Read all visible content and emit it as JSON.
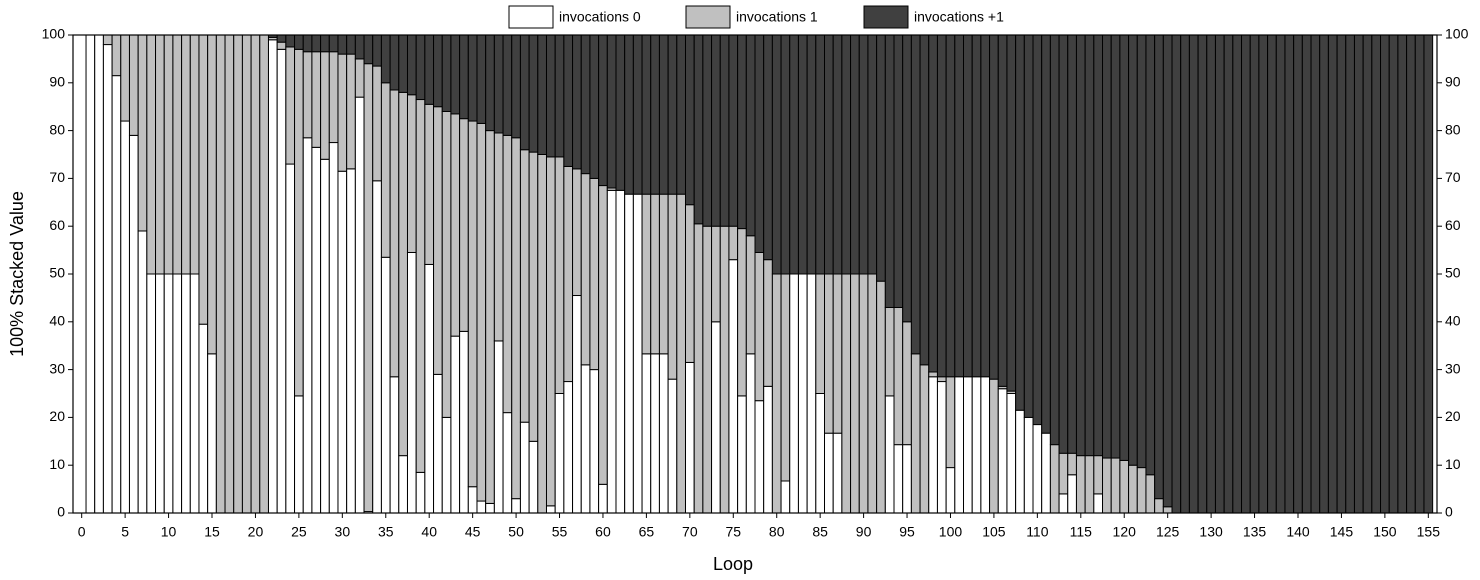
{
  "chart_data": {
    "type": "stacked_bar_100",
    "xlabel": "Loop",
    "ylabel": "100% Stacked Value",
    "x": [
      1,
      2,
      3,
      4,
      5,
      6,
      7,
      8,
      9,
      10,
      11,
      12,
      13,
      14,
      15,
      16,
      17,
      18,
      19,
      20,
      21,
      22,
      23,
      24,
      25,
      26,
      27,
      28,
      29,
      30,
      31,
      32,
      33,
      34,
      35,
      36,
      37,
      38,
      39,
      40,
      41,
      42,
      43,
      44,
      45,
      46,
      47,
      48,
      49,
      50,
      51,
      52,
      53,
      54,
      55,
      56,
      57,
      58,
      59,
      60,
      61,
      62,
      63,
      64,
      65,
      66,
      67,
      68,
      69,
      70,
      71,
      72,
      73,
      74,
      75,
      76,
      77,
      78,
      79,
      80,
      81,
      82,
      83,
      84,
      85,
      86,
      87,
      88,
      89,
      90,
      91,
      92,
      93,
      94,
      95,
      96,
      97,
      98,
      99,
      100,
      101,
      102,
      103,
      104,
      105,
      106,
      107,
      108,
      109,
      110,
      111,
      112,
      113,
      114,
      115,
      116,
      117,
      118,
      119,
      120,
      121,
      122,
      123,
      124,
      125,
      126,
      127,
      128,
      129,
      130,
      131,
      132,
      133,
      134,
      135,
      136,
      137,
      138,
      139,
      140,
      141,
      142,
      143,
      144,
      145,
      146,
      147,
      148,
      149,
      150,
      151,
      152,
      153,
      154,
      155
    ],
    "series": [
      {
        "name": "invocations 0",
        "color": "#ffffff",
        "values": [
          100,
          100,
          98,
          91.5,
          82,
          79,
          59,
          50,
          50,
          50,
          50,
          50,
          50,
          39.5,
          33.3,
          0,
          0,
          0,
          0,
          0,
          0,
          99,
          97,
          73,
          24.5,
          78.5,
          76.5,
          74,
          77.5,
          71.5,
          72,
          87,
          0.3,
          69.5,
          53.5,
          28.5,
          12,
          54.5,
          8.5,
          52,
          29,
          20,
          37,
          38,
          5.5,
          2.5,
          2,
          36,
          21,
          3,
          19,
          15,
          0,
          1.5,
          25,
          27.5,
          45.5,
          31,
          30,
          6,
          67.5,
          67.5,
          66.7,
          66.7,
          33.3,
          33.3,
          33.3,
          28,
          0,
          31.5,
          0,
          0,
          40,
          0,
          53,
          24.5,
          33.3,
          23.5,
          26.5,
          0,
          6.7,
          50,
          50,
          50,
          25,
          16.7,
          16.7,
          0,
          0,
          0,
          0,
          0,
          24.5,
          14.3,
          14.3,
          0,
          0,
          28.5,
          27.5,
          9.5,
          28.5,
          28.5,
          28.5,
          28.5,
          0,
          26,
          25,
          21.5,
          20,
          18.5,
          16.7,
          0,
          4,
          8,
          0,
          0,
          4,
          0,
          0,
          0,
          0,
          0,
          0,
          0,
          0,
          0,
          0,
          0,
          0,
          0,
          0,
          0,
          0,
          0,
          0,
          0,
          0,
          0,
          0,
          0,
          0,
          0,
          0,
          0,
          0,
          0,
          0,
          0,
          0,
          0,
          0,
          0,
          0,
          0,
          0
        ]
      },
      {
        "name": "invocations 1",
        "color": "#c0c0c0",
        "values": [
          0,
          0,
          2,
          8.5,
          18,
          21,
          41,
          50,
          50,
          50,
          50,
          50,
          50,
          60.5,
          66.7,
          100,
          100,
          100,
          100,
          100,
          100,
          0.5,
          1.5,
          24.5,
          72.5,
          18,
          20,
          22.5,
          19,
          24.5,
          24,
          8,
          93.7,
          24,
          36.5,
          60,
          76,
          33,
          78,
          33.5,
          56,
          64,
          46.5,
          44.5,
          76.5,
          79,
          78,
          43.5,
          58,
          75.5,
          57,
          60.5,
          75,
          73,
          49.5,
          45,
          26.5,
          40,
          40,
          62.5,
          0.5,
          0,
          0,
          0,
          33.4,
          33.4,
          33.4,
          38.7,
          66.7,
          33,
          60.5,
          60,
          20,
          60,
          7,
          35,
          24.7,
          31,
          26.5,
          50,
          43.3,
          0,
          0,
          0,
          25,
          33.3,
          33.3,
          50,
          50,
          50,
          50,
          48.5,
          18.5,
          28.7,
          25.7,
          33.3,
          31,
          1,
          1,
          19,
          0,
          0,
          0,
          0,
          28,
          0.5,
          0.5,
          0,
          0,
          0,
          0,
          14.3,
          8.5,
          4.5,
          12,
          12,
          8,
          11.5,
          11.5,
          11,
          10,
          9.5,
          8,
          3,
          1.3,
          0,
          0,
          0,
          0,
          0,
          0,
          0,
          0,
          0,
          0,
          0,
          0,
          0,
          0,
          0,
          0,
          0,
          0,
          0,
          0,
          0,
          0,
          0,
          0,
          0,
          0,
          0,
          0,
          0,
          0
        ]
      },
      {
        "name": "invocations +1",
        "color": "#404040",
        "values": [
          0,
          0,
          0,
          0,
          0,
          0,
          0,
          0,
          0,
          0,
          0,
          0,
          0,
          0,
          0,
          0,
          0,
          0,
          0,
          0,
          0,
          0.5,
          1.5,
          2.5,
          3,
          3.5,
          3.5,
          3.5,
          3.5,
          4,
          4,
          5,
          6,
          6.5,
          10,
          11.5,
          12,
          12.5,
          13.5,
          14.5,
          15,
          16,
          16.5,
          17.5,
          18,
          18.5,
          20,
          20.5,
          21,
          21.5,
          24,
          24.5,
          25,
          25.5,
          25.5,
          27.5,
          28,
          29,
          30,
          31.5,
          32,
          32.5,
          33.3,
          33.3,
          33.3,
          33.3,
          33.3,
          33.3,
          33.3,
          35.5,
          39.5,
          40,
          40,
          40,
          40,
          40.5,
          42,
          45.5,
          47,
          50,
          50,
          50,
          50,
          50,
          50,
          50,
          50,
          50,
          50,
          50,
          50,
          51.5,
          57,
          57,
          60,
          66.7,
          69,
          70.5,
          71.5,
          71.5,
          71.5,
          71.5,
          71.5,
          71.5,
          72,
          73.5,
          74.5,
          78.5,
          80,
          81.5,
          83.3,
          85.7,
          87.5,
          87.5,
          88,
          88,
          88,
          88.5,
          88.5,
          89,
          90,
          90.5,
          92,
          97,
          98.7,
          100,
          100,
          100,
          100,
          100,
          100,
          100,
          100,
          100,
          100,
          100,
          100,
          100,
          100,
          100,
          100,
          100,
          100,
          100,
          100,
          100,
          100,
          100,
          100,
          100,
          100,
          100,
          100,
          100,
          100
        ]
      }
    ],
    "xlim": [
      -1,
      156
    ],
    "xticks": [
      0,
      5,
      10,
      15,
      20,
      25,
      30,
      35,
      40,
      45,
      50,
      55,
      60,
      65,
      70,
      75,
      80,
      85,
      90,
      95,
      100,
      105,
      110,
      115,
      120,
      125,
      130,
      135,
      140,
      145,
      150,
      155
    ],
    "ylim": [
      0,
      100
    ],
    "yticks": [
      0,
      10,
      20,
      30,
      40,
      50,
      60,
      70,
      80,
      90,
      100
    ],
    "y2lim": [
      0,
      100
    ],
    "y2ticks": [
      0,
      10,
      20,
      30,
      40,
      50,
      60,
      70,
      80,
      90,
      100
    ],
    "legend": "top"
  }
}
